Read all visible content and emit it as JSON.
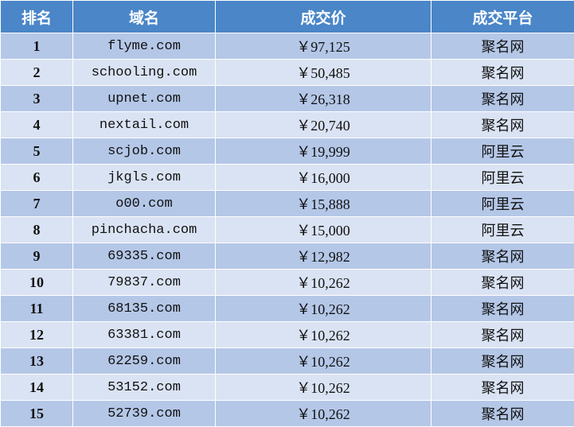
{
  "table": {
    "header": [
      "排名",
      "域名",
      "成交价",
      "成交平台"
    ],
    "rows": [
      [
        1,
        "flyme.com",
        "￥97,125",
        "聚名网"
      ],
      [
        2,
        "schooling.com",
        "￥50,485",
        "聚名网"
      ],
      [
        3,
        "upnet.com",
        "￥26,318",
        "聚名网"
      ],
      [
        4,
        "nextail.com",
        "￥20,740",
        "聚名网"
      ],
      [
        5,
        "scjob.com",
        "￥19,999",
        "阿里云"
      ],
      [
        6,
        "jkgls.com",
        "￥16,000",
        "阿里云"
      ],
      [
        7,
        "o00.com",
        "￥15,888",
        "阿里云"
      ],
      [
        8,
        "pinchacha.com",
        "￥15,000",
        "阿里云"
      ],
      [
        9,
        "69335.com",
        "￥12,982",
        "聚名网"
      ],
      [
        10,
        "79837.com",
        "￥10,262",
        "聚名网"
      ],
      [
        11,
        "68135.com",
        "￥10,262",
        "聚名网"
      ],
      [
        12,
        "63381.com",
        "￥10,262",
        "聚名网"
      ],
      [
        13,
        "62259.com",
        "￥10,262",
        "聚名网"
      ],
      [
        14,
        "53152.com",
        "￥10,262",
        "聚名网"
      ],
      [
        15,
        "52739.com",
        "￥10,262",
        "聚名网"
      ]
    ]
  }
}
